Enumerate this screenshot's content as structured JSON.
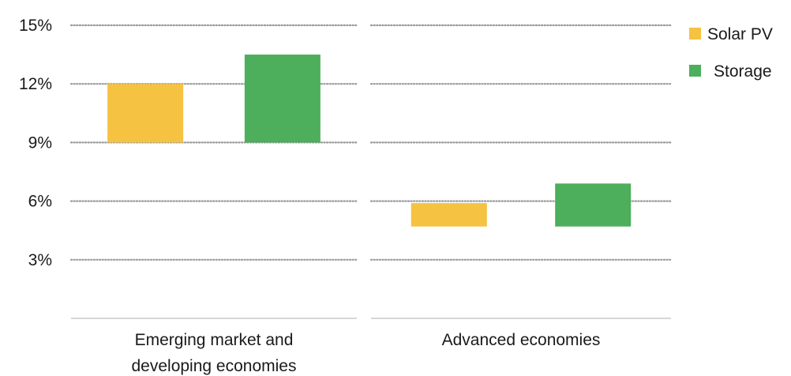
{
  "chart_data": {
    "type": "bar",
    "subtype": "floating-range",
    "panels": [
      {
        "category": "Emerging market and developing economies",
        "category_lines": [
          "Emerging market and",
          "developing economies"
        ]
      },
      {
        "category": "Advanced economies",
        "category_lines": [
          "Advanced economies"
        ]
      }
    ],
    "series": [
      {
        "name": "Solar PV",
        "color": "#F5C242",
        "ranges": [
          [
            9.0,
            12.0
          ],
          [
            4.7,
            5.9
          ]
        ]
      },
      {
        "name": "Storage",
        "color": "#4DAE5B",
        "ranges": [
          [
            9.0,
            13.5
          ],
          [
            4.7,
            6.9
          ]
        ]
      }
    ],
    "y_ticks": [
      3,
      6,
      9,
      12,
      15
    ],
    "y_tick_labels": [
      "3%",
      "6%",
      "9%",
      "12%",
      "15%"
    ],
    "ylim": [
      0,
      15
    ],
    "grid": "dotted-horizontal",
    "legend_position": "top-right",
    "colors": {
      "grid": "#9A9A9A",
      "axis": "#BFBFBF"
    }
  }
}
